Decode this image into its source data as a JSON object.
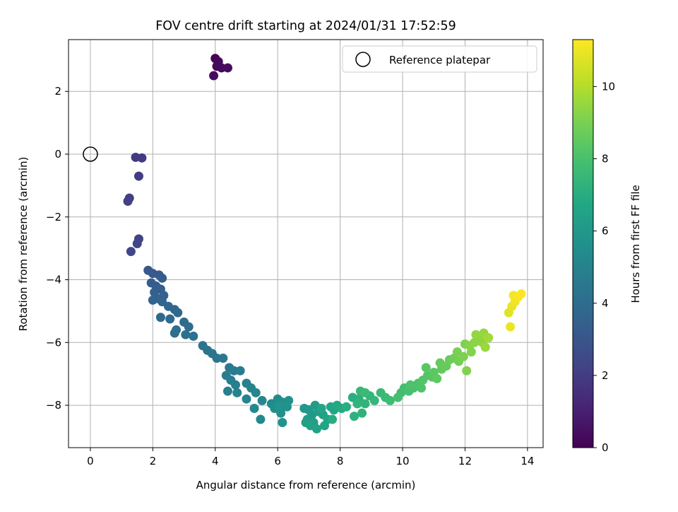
{
  "chart_data": {
    "type": "scatter",
    "title": "FOV centre drift starting at 2024/01/31 17:52:59",
    "xlabel": "Angular distance from reference (arcmin)",
    "ylabel": "Rotation from reference (arcmin)",
    "xlim": [
      -0.7,
      14.5
    ],
    "ylim": [
      -9.35,
      3.65
    ],
    "xticks": [
      0,
      2,
      4,
      6,
      8,
      10,
      12,
      14
    ],
    "yticks": [
      -8,
      -6,
      -4,
      -2,
      0,
      2
    ],
    "grid": true,
    "legend": {
      "placement": "top-right",
      "label": "Reference platepar"
    },
    "reference_point": {
      "x": 0,
      "y": 0
    },
    "colorbar": {
      "label": "Hours from first FF file",
      "range": [
        0,
        11.3
      ],
      "ticks": [
        0,
        2,
        4,
        6,
        8,
        10
      ],
      "colormap": "viridis"
    },
    "series": [
      {
        "points": [
          [
            4.0,
            3.05,
            0.1
          ],
          [
            4.1,
            2.95,
            0.2
          ],
          [
            4.05,
            2.8,
            0.25
          ],
          [
            4.2,
            2.75,
            0.3
          ],
          [
            4.4,
            2.75,
            0.35
          ],
          [
            3.95,
            2.5,
            0.4
          ],
          [
            1.45,
            -0.1,
            1.9
          ],
          [
            1.65,
            -0.12,
            1.95
          ],
          [
            1.55,
            -0.7,
            2.0
          ],
          [
            1.25,
            -1.4,
            2.1
          ],
          [
            1.2,
            -1.5,
            2.15
          ],
          [
            1.55,
            -2.7,
            2.3
          ],
          [
            1.5,
            -2.85,
            2.35
          ],
          [
            1.3,
            -3.1,
            2.4
          ],
          [
            1.85,
            -3.7,
            3.1
          ],
          [
            2.0,
            -3.8,
            3.15
          ],
          [
            2.2,
            -3.85,
            3.2
          ],
          [
            2.3,
            -3.95,
            3.25
          ],
          [
            1.95,
            -4.1,
            3.3
          ],
          [
            2.1,
            -4.2,
            3.35
          ],
          [
            2.25,
            -4.3,
            3.4
          ],
          [
            2.05,
            -4.4,
            3.45
          ],
          [
            2.35,
            -4.5,
            3.5
          ],
          [
            2.15,
            -4.6,
            3.55
          ],
          [
            2.0,
            -4.65,
            3.6
          ],
          [
            2.3,
            -4.7,
            3.65
          ],
          [
            2.5,
            -4.85,
            3.7
          ],
          [
            2.7,
            -4.95,
            3.75
          ],
          [
            2.8,
            -5.05,
            3.8
          ],
          [
            2.25,
            -5.2,
            3.85
          ],
          [
            2.55,
            -5.25,
            3.9
          ],
          [
            3.0,
            -5.35,
            3.95
          ],
          [
            3.15,
            -5.5,
            4.0
          ],
          [
            2.75,
            -5.6,
            4.05
          ],
          [
            3.05,
            -5.75,
            4.1
          ],
          [
            2.7,
            -5.7,
            4.15
          ],
          [
            3.3,
            -5.8,
            4.2
          ],
          [
            3.6,
            -6.1,
            4.3
          ],
          [
            3.75,
            -6.25,
            4.35
          ],
          [
            3.9,
            -6.35,
            4.4
          ],
          [
            4.05,
            -6.5,
            4.45
          ],
          [
            4.25,
            -6.5,
            4.5
          ],
          [
            4.45,
            -6.8,
            4.6
          ],
          [
            4.6,
            -6.9,
            4.65
          ],
          [
            4.35,
            -7.05,
            4.7
          ],
          [
            4.5,
            -7.2,
            4.75
          ],
          [
            4.8,
            -6.9,
            4.8
          ],
          [
            4.65,
            -7.35,
            4.85
          ],
          [
            4.4,
            -7.55,
            4.9
          ],
          [
            4.7,
            -7.6,
            4.95
          ],
          [
            5.0,
            -7.3,
            5.0
          ],
          [
            5.15,
            -7.45,
            5.05
          ],
          [
            5.0,
            -7.8,
            5.1
          ],
          [
            5.3,
            -7.6,
            5.15
          ],
          [
            5.5,
            -7.85,
            5.2
          ],
          [
            5.25,
            -8.1,
            5.25
          ],
          [
            5.45,
            -8.45,
            5.3
          ],
          [
            5.8,
            -7.95,
            5.35
          ],
          [
            6.0,
            -7.8,
            5.4
          ],
          [
            6.15,
            -7.9,
            5.45
          ],
          [
            5.9,
            -8.1,
            5.5
          ],
          [
            6.1,
            -8.25,
            5.55
          ],
          [
            6.05,
            -8.1,
            5.6
          ],
          [
            6.35,
            -7.85,
            5.65
          ],
          [
            6.15,
            -8.55,
            5.7
          ],
          [
            6.3,
            -8.05,
            5.75
          ],
          [
            6.05,
            -8.0,
            5.8
          ],
          [
            6.85,
            -8.1,
            6.0
          ],
          [
            7.0,
            -8.15,
            6.05
          ],
          [
            7.1,
            -8.3,
            6.1
          ],
          [
            6.95,
            -8.45,
            6.15
          ],
          [
            7.2,
            -8.0,
            6.2
          ],
          [
            7.3,
            -8.2,
            6.25
          ],
          [
            7.15,
            -8.55,
            6.3
          ],
          [
            6.9,
            -8.55,
            6.35
          ],
          [
            7.45,
            -8.3,
            6.4
          ],
          [
            7.05,
            -8.65,
            6.45
          ],
          [
            7.25,
            -8.75,
            6.5
          ],
          [
            7.6,
            -8.45,
            6.55
          ],
          [
            7.5,
            -8.65,
            6.6
          ],
          [
            7.7,
            -8.05,
            6.65
          ],
          [
            7.4,
            -8.1,
            6.7
          ],
          [
            7.8,
            -8.15,
            6.75
          ],
          [
            7.9,
            -8.0,
            6.8
          ],
          [
            8.05,
            -8.1,
            6.9
          ],
          [
            7.75,
            -8.45,
            7.0
          ],
          [
            8.2,
            -8.05,
            7.05
          ],
          [
            8.4,
            -7.75,
            7.1
          ],
          [
            8.6,
            -7.8,
            7.15
          ],
          [
            8.45,
            -8.35,
            7.2
          ],
          [
            8.7,
            -8.25,
            7.25
          ],
          [
            8.8,
            -7.95,
            7.3
          ],
          [
            8.55,
            -7.95,
            7.35
          ],
          [
            8.95,
            -7.7,
            7.4
          ],
          [
            9.1,
            -7.85,
            7.45
          ],
          [
            8.65,
            -7.55,
            7.5
          ],
          [
            9.3,
            -7.6,
            7.55
          ],
          [
            8.8,
            -7.6,
            7.6
          ],
          [
            9.45,
            -7.75,
            7.65
          ],
          [
            9.6,
            -7.85,
            7.7
          ],
          [
            9.95,
            -7.6,
            7.8
          ],
          [
            10.05,
            -7.45,
            7.85
          ],
          [
            9.85,
            -7.75,
            7.9
          ],
          [
            10.2,
            -7.55,
            7.95
          ],
          [
            10.35,
            -7.45,
            8.0
          ],
          [
            10.5,
            -7.3,
            8.05
          ],
          [
            10.25,
            -7.35,
            8.1
          ],
          [
            10.6,
            -7.45,
            8.15
          ],
          [
            10.65,
            -7.2,
            8.2
          ],
          [
            10.8,
            -7.05,
            8.25
          ],
          [
            10.95,
            -7.1,
            8.3
          ],
          [
            10.75,
            -6.8,
            8.35
          ],
          [
            11.0,
            -6.95,
            8.4
          ],
          [
            11.1,
            -7.15,
            8.45
          ],
          [
            11.25,
            -6.85,
            8.55
          ],
          [
            11.2,
            -6.65,
            8.6
          ],
          [
            11.4,
            -6.75,
            8.65
          ],
          [
            11.5,
            -6.55,
            8.7
          ],
          [
            11.65,
            -6.5,
            8.8
          ],
          [
            11.8,
            -6.6,
            8.9
          ],
          [
            11.75,
            -6.3,
            9.0
          ],
          [
            11.95,
            -6.45,
            9.05
          ],
          [
            12.0,
            -6.05,
            9.1
          ],
          [
            12.05,
            -6.9,
            9.15
          ],
          [
            12.2,
            -6.3,
            9.2
          ],
          [
            12.15,
            -6.1,
            9.25
          ],
          [
            12.3,
            -6.0,
            9.3
          ],
          [
            12.45,
            -5.9,
            9.35
          ],
          [
            12.55,
            -6.0,
            9.4
          ],
          [
            12.35,
            -5.75,
            9.45
          ],
          [
            12.6,
            -5.7,
            9.5
          ],
          [
            12.65,
            -6.15,
            9.6
          ],
          [
            12.75,
            -5.85,
            9.7
          ],
          [
            13.4,
            -5.05,
            10.8
          ],
          [
            13.5,
            -4.85,
            10.9
          ],
          [
            13.45,
            -5.5,
            11.0
          ],
          [
            13.6,
            -4.7,
            11.05
          ],
          [
            13.55,
            -4.5,
            11.1
          ],
          [
            13.7,
            -4.55,
            11.2
          ],
          [
            13.8,
            -4.45,
            11.3
          ]
        ]
      }
    ]
  }
}
